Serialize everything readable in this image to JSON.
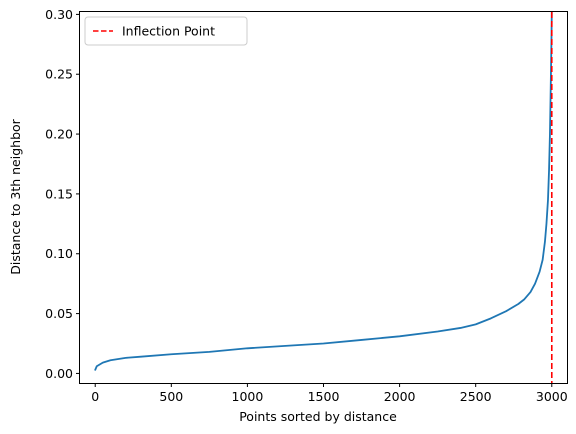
{
  "chart_data": {
    "type": "line",
    "xlabel": "Points sorted by distance",
    "ylabel": "Distance to 3th neighbor",
    "xlim": [
      -100,
      3100
    ],
    "ylim": [
      -0.008,
      0.302
    ],
    "xticks": [
      0,
      500,
      1000,
      1500,
      2000,
      2500,
      3000
    ],
    "xtick_labels": [
      "0",
      "500",
      "1000",
      "1500",
      "2000",
      "2500",
      "3000"
    ],
    "yticks": [
      0.0,
      0.05,
      0.1,
      0.15,
      0.2,
      0.25,
      0.3
    ],
    "ytick_labels": [
      "0.00",
      "0.05",
      "0.10",
      "0.15",
      "0.20",
      "0.25",
      "0.30"
    ],
    "grid": false,
    "legend_placement": "upper-left",
    "series": [
      {
        "color": "#1f77b4",
        "x": [
          0,
          10,
          50,
          100,
          200,
          300,
          500,
          750,
          1000,
          1250,
          1500,
          1750,
          2000,
          2250,
          2400,
          2500,
          2600,
          2700,
          2780,
          2820,
          2860,
          2890,
          2920,
          2940,
          2955,
          2965,
          2975,
          2982,
          2988,
          2992,
          2995,
          2998,
          3000
        ],
        "y": [
          0.003,
          0.006,
          0.009,
          0.011,
          0.013,
          0.014,
          0.016,
          0.018,
          0.021,
          0.023,
          0.025,
          0.028,
          0.031,
          0.035,
          0.038,
          0.041,
          0.046,
          0.052,
          0.058,
          0.062,
          0.068,
          0.075,
          0.085,
          0.095,
          0.11,
          0.125,
          0.145,
          0.17,
          0.2,
          0.23,
          0.255,
          0.28,
          0.302
        ]
      }
    ],
    "vline": {
      "x": 3000,
      "label": "Inflection Point",
      "color": "#ff0000",
      "style": "dashed"
    }
  }
}
